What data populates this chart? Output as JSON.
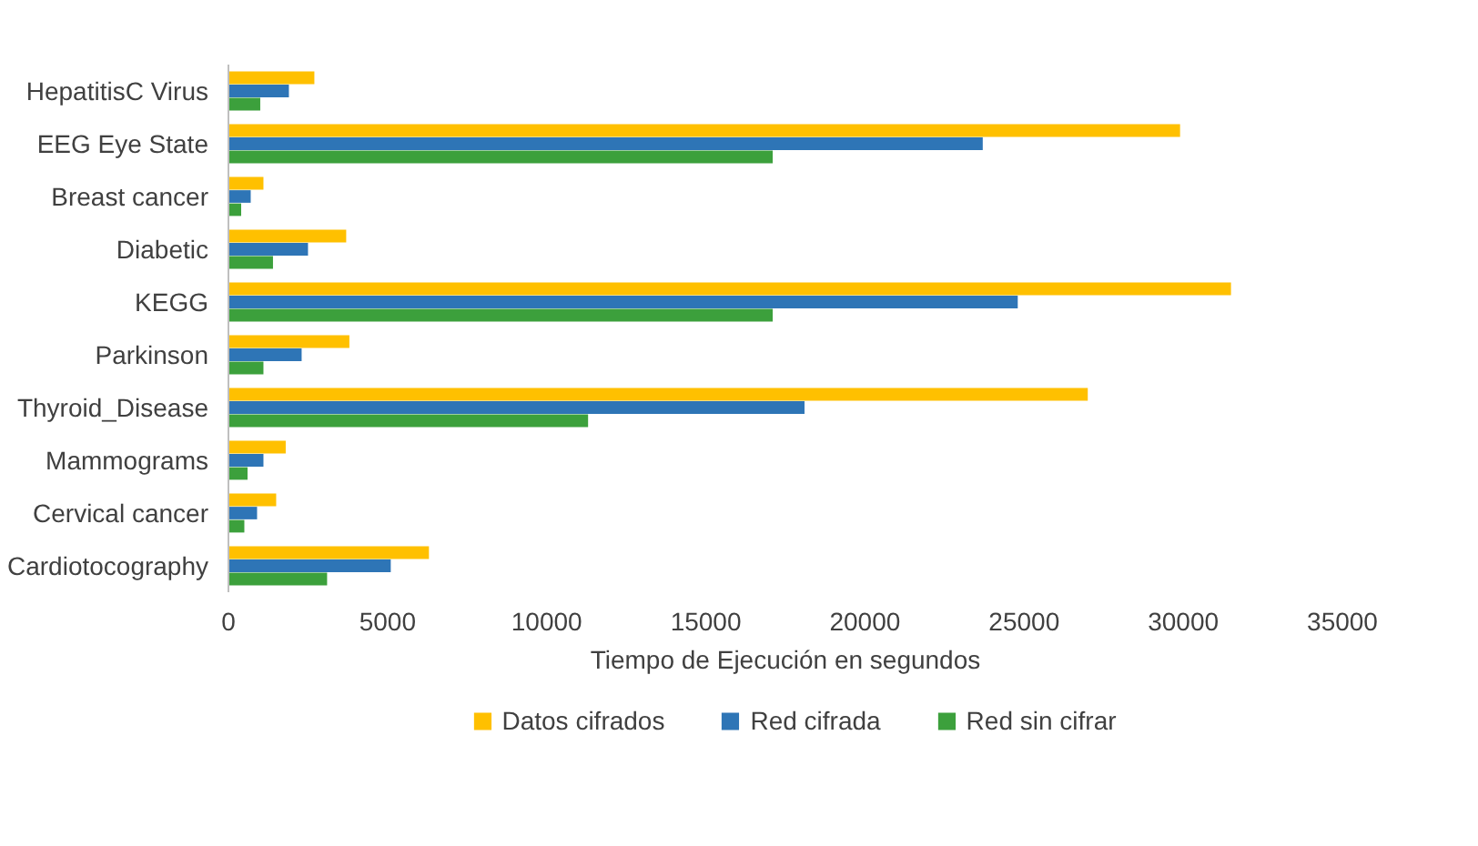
{
  "chart_data": {
    "type": "bar",
    "orientation": "horizontal",
    "xlabel": "Tiempo de Ejecución en segundos",
    "categories": [
      "HepatitisC Virus",
      "EEG Eye State",
      "Breast cancer",
      "Diabetic",
      "KEGG",
      "Parkinson",
      "Thyroid_Disease",
      "Mammograms",
      "Cervical cancer",
      "Cardiotocography"
    ],
    "series": [
      {
        "name": "Datos cifrados",
        "color": "#ffc000",
        "values": [
          2700,
          29900,
          1100,
          3700,
          31500,
          3800,
          27000,
          1800,
          1500,
          6300
        ]
      },
      {
        "name": "Red cifrada",
        "color": "#2e75b6",
        "values": [
          1900,
          23700,
          700,
          2500,
          24800,
          2300,
          18100,
          1100,
          900,
          5100
        ]
      },
      {
        "name": "Red sin cifrar",
        "color": "#3ca03c",
        "values": [
          1000,
          17100,
          400,
          1400,
          17100,
          1100,
          11300,
          600,
          500,
          3100
        ]
      }
    ],
    "xlim": [
      0,
      35000
    ],
    "xticks": [
      0,
      5000,
      10000,
      15000,
      20000,
      25000,
      30000,
      35000
    ],
    "grid": false,
    "legend": "bottom"
  }
}
